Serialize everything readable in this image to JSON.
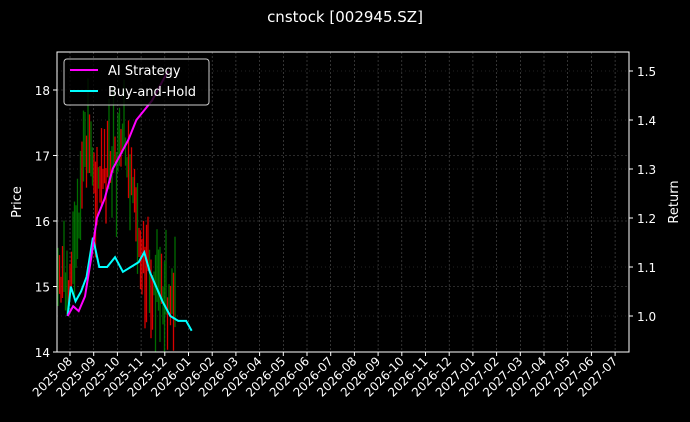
{
  "chart_data": {
    "type": "line",
    "title": "cnstock [002945.SZ]",
    "xlabel": "",
    "ylabel": "Price",
    "ylabel_right": "Return",
    "ylim": [
      14,
      18.6
    ],
    "ylim_right": [
      0.93,
      1.54
    ],
    "yticks": [
      14,
      15,
      16,
      17,
      18
    ],
    "yticks_right": [
      1.0,
      1.1,
      1.2,
      1.3,
      1.4,
      1.5
    ],
    "xticks": [
      "2025-08",
      "2025-09",
      "2025-10",
      "2025-11",
      "2025-12",
      "2026-01",
      "2026-02",
      "2026-03",
      "2026-04",
      "2026-05",
      "2026-06",
      "2026-07",
      "2026-08",
      "2026-09",
      "2026-10",
      "2026-11",
      "2026-12",
      "2027-01",
      "2027-02",
      "2027-03",
      "2027-04",
      "2027-05",
      "2027-06",
      "2027-07"
    ],
    "grid": true,
    "legend_position": "upper left",
    "legend": [
      "AI Strategy",
      "Buy-and-Hold"
    ],
    "colors": {
      "ai_strategy": "#ff00ff",
      "buy_and_hold": "#00ffff",
      "candle_up": "#008000",
      "candle_down": "#ff0000",
      "background": "#000000",
      "grid": "#555555"
    },
    "series": [
      {
        "name": "AI Strategy",
        "axis": "right",
        "x": [
          "2025-07-28",
          "2025-08-05",
          "2025-08-12",
          "2025-08-20",
          "2025-08-28",
          "2025-09-05",
          "2025-09-15",
          "2025-09-25",
          "2025-10-05",
          "2025-10-15",
          "2025-10-25",
          "2025-11-05",
          "2025-11-15",
          "2025-11-25",
          "2025-12-05"
        ],
        "values": [
          1.0,
          1.02,
          1.01,
          1.04,
          1.12,
          1.2,
          1.24,
          1.3,
          1.33,
          1.36,
          1.4,
          1.42,
          1.44,
          1.47,
          1.5
        ]
      },
      {
        "name": "Buy-and-Hold",
        "axis": "right",
        "x": [
          "2025-07-28",
          "2025-08-02",
          "2025-08-08",
          "2025-08-15",
          "2025-08-22",
          "2025-08-30",
          "2025-09-08",
          "2025-09-18",
          "2025-09-28",
          "2025-10-08",
          "2025-10-18",
          "2025-10-28",
          "2025-11-05",
          "2025-11-12",
          "2025-11-20",
          "2025-11-28",
          "2025-12-08",
          "2025-12-18",
          "2025-12-28",
          "2026-01-05"
        ],
        "values": [
          1.0,
          1.06,
          1.03,
          1.05,
          1.08,
          1.16,
          1.1,
          1.1,
          1.12,
          1.09,
          1.1,
          1.11,
          1.13,
          1.09,
          1.06,
          1.03,
          1.0,
          0.99,
          0.99,
          0.97
        ]
      },
      {
        "name": "Price (candles)",
        "axis": "left",
        "x": [
          "2025-08",
          "2025-09",
          "2025-10",
          "2025-11",
          "2025-12",
          "2026-01"
        ],
        "values": [
          15.0,
          16.8,
          17.4,
          16.2,
          15.3,
          14.6
        ]
      }
    ]
  }
}
